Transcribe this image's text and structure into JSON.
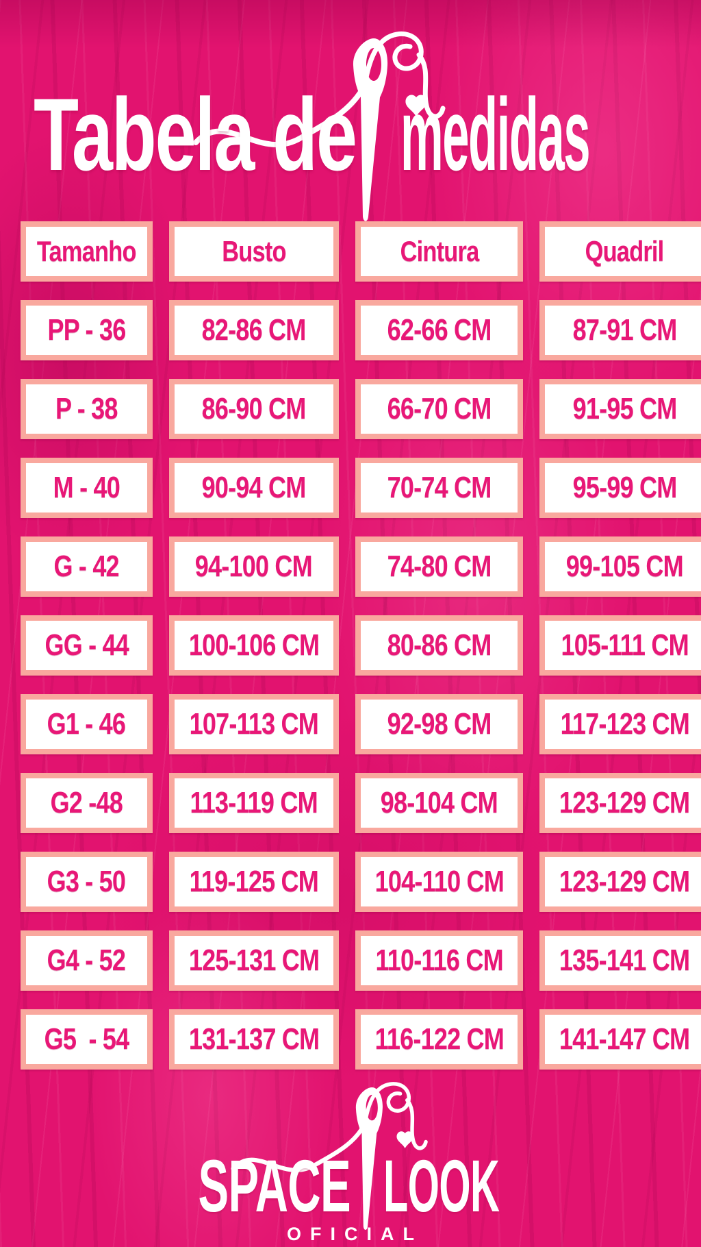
{
  "title": {
    "left": "Tabela de",
    "right": "medidas"
  },
  "table": {
    "headers": [
      "Tamanho",
      "Busto",
      "Cintura",
      "Quadril"
    ],
    "rows": [
      [
        "PP - 36",
        "82-86 CM",
        "62-66 CM",
        "87-91 CM"
      ],
      [
        "P - 38",
        "86-90 CM",
        "66-70 CM",
        "91-95 CM"
      ],
      [
        "M - 40",
        "90-94 CM",
        "70-74 CM",
        "95-99 CM"
      ],
      [
        "G - 42",
        "94-100 CM",
        "74-80 CM",
        "99-105 CM"
      ],
      [
        "GG - 44",
        "100-106 CM",
        "80-86 CM",
        "105-111 CM"
      ],
      [
        "G1 - 46",
        "107-113 CM",
        "92-98 CM",
        "117-123 CM"
      ],
      [
        "G2 -48",
        "113-119 CM",
        "98-104 CM",
        "123-129 CM"
      ],
      [
        "G3 - 50",
        "119-125 CM",
        "104-110 CM",
        "123-129 CM"
      ],
      [
        "G4 - 52",
        "125-131 CM",
        "110-116 CM",
        "135-141 CM"
      ],
      [
        "G5  - 54",
        "131-137 CM",
        "116-122 CM",
        "141-147 CM"
      ]
    ]
  },
  "brand": {
    "left": "SPACE",
    "right": "LOOK",
    "subtitle": "OFICIAL"
  },
  "icons": {
    "needle_thread": "needle-and-thread-icon",
    "heart": "heart-icon"
  },
  "colors": {
    "background": "#e2136f",
    "cell_border": "#f9a89e",
    "cell_fill": "#ffffff",
    "text": "#e81777",
    "title": "#ffffff"
  }
}
